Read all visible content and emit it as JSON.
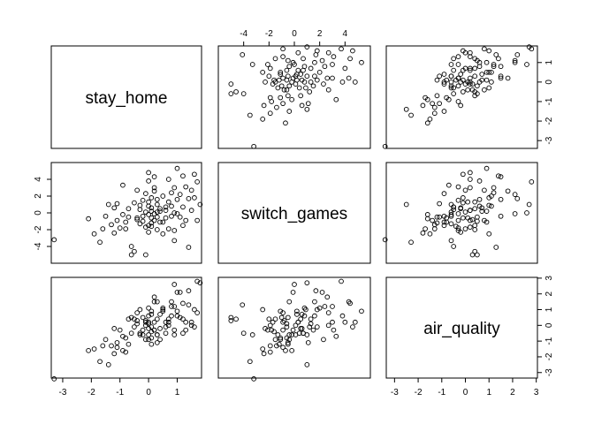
{
  "chart_data": {
    "type": "scatter-matrix",
    "variables": [
      "stay_home",
      "switch_games",
      "air_quality"
    ],
    "ticks": {
      "stay_home": [
        -3,
        -2,
        -1,
        0,
        1
      ],
      "switch_games": [
        -4,
        -2,
        0,
        2,
        4
      ],
      "air_quality": [
        -3,
        -2,
        -1,
        0,
        1,
        2,
        3
      ]
    },
    "ranges": {
      "stay_home": [
        -3.4,
        1.85
      ],
      "switch_games": [
        -6.0,
        6.0
      ],
      "air_quality": [
        -3.35,
        3.05
      ]
    },
    "tick_placement": {
      "top": [
        "switch_games"
      ],
      "right": [
        "stay_home",
        "air_quality"
      ],
      "bottom": [
        "stay_home",
        "air_quality"
      ],
      "left": [
        "switch_games"
      ]
    },
    "grid": false,
    "legend": "none",
    "observations": [
      [
        -3.3,
        -3.2,
        -3.4
      ],
      [
        -2.1,
        -0.7,
        -1.6
      ],
      [
        -1.9,
        -2.5,
        -1.5
      ],
      [
        -1.7,
        -3.5,
        -2.3
      ],
      [
        -1.6,
        -1.9,
        -1.3
      ],
      [
        -1.5,
        -0.4,
        -0.9
      ],
      [
        -1.4,
        1.0,
        -2.5
      ],
      [
        -1.3,
        -1.4,
        -1.3
      ],
      [
        -1.2,
        0.6,
        -0.2
      ],
      [
        -1.2,
        -2.4,
        -1.8
      ],
      [
        -1.1,
        1.1,
        -1.1
      ],
      [
        -1.1,
        -0.9,
        -1.4
      ],
      [
        -1.0,
        -1.8,
        -0.3
      ],
      [
        -0.9,
        -0.2,
        -1.6
      ],
      [
        -0.9,
        3.3,
        -0.7
      ],
      [
        -0.8,
        -1.1,
        -0.8
      ],
      [
        -0.8,
        -1.9,
        -1.7
      ],
      [
        -0.7,
        -0.5,
        -1.2
      ],
      [
        -0.7,
        0.5,
        0.4
      ],
      [
        -0.6,
        -4.0,
        -0.5
      ],
      [
        -0.6,
        -5.0,
        0.5
      ],
      [
        -0.5,
        -4.6,
        0.4
      ],
      [
        -0.5,
        1.2,
        -0.1
      ],
      [
        -0.4,
        2.7,
        0.8
      ],
      [
        -0.4,
        -0.6,
        0.1
      ],
      [
        -0.3,
        0.4,
        -0.5
      ],
      [
        -0.3,
        -1.3,
        -0.6
      ],
      [
        -0.3,
        0.9,
        1.0
      ],
      [
        -0.2,
        -1.0,
        0.5
      ],
      [
        -0.2,
        1.5,
        -0.3
      ],
      [
        -0.2,
        -0.4,
        -0.6
      ],
      [
        -0.1,
        -5.0,
        0.3
      ],
      [
        -0.1,
        0.1,
        0.0
      ],
      [
        -0.1,
        2.3,
        -0.9
      ],
      [
        -0.1,
        -1.7,
        0.2
      ],
      [
        0.0,
        3.8,
        0.6
      ],
      [
        0.0,
        1.3,
        0.1
      ],
      [
        0.0,
        -1.5,
        -0.9
      ],
      [
        0.0,
        -0.2,
        -0.6
      ],
      [
        0.0,
        0.8,
        1.1
      ],
      [
        0.0,
        -2.3,
        -0.2
      ],
      [
        0.0,
        4.8,
        0.2
      ],
      [
        0.1,
        -0.6,
        -0.8
      ],
      [
        0.1,
        0.6,
        0.7
      ],
      [
        0.1,
        -1.2,
        -1.2
      ],
      [
        0.1,
        -1.6,
        -0.4
      ],
      [
        0.1,
        1.8,
        -0.1
      ],
      [
        0.1,
        0.2,
        0.9
      ],
      [
        0.2,
        3.0,
        0.2
      ],
      [
        0.2,
        -0.1,
        -0.3
      ],
      [
        0.2,
        -0.9,
        -0.3
      ],
      [
        0.2,
        4.3,
        1.5
      ],
      [
        0.2,
        2.6,
        1.8
      ],
      [
        0.3,
        -2.0,
        0.4
      ],
      [
        0.3,
        1.0,
        -0.6
      ],
      [
        0.3,
        1.6,
        1.5
      ],
      [
        0.3,
        -0.5,
        -1.1
      ],
      [
        0.3,
        0.1,
        -0.6
      ],
      [
        0.4,
        0.2,
        0.7
      ],
      [
        0.4,
        0.5,
        -0.2
      ],
      [
        0.4,
        -1.1,
        -0.9
      ],
      [
        0.5,
        2.0,
        1.1
      ],
      [
        0.5,
        -2.5,
        1.0
      ],
      [
        0.5,
        -1.1,
        0.9
      ],
      [
        0.6,
        0.3,
        0.2
      ],
      [
        0.6,
        -0.6,
        -0.1
      ],
      [
        0.6,
        0.7,
        -0.5
      ],
      [
        0.7,
        -1.9,
        0.0
      ],
      [
        0.7,
        1.3,
        0.4
      ],
      [
        0.7,
        4.0,
        0.2
      ],
      [
        0.8,
        0.8,
        0.6
      ],
      [
        0.8,
        -0.4,
        1.5
      ],
      [
        0.8,
        2.4,
        1.2
      ],
      [
        0.9,
        -2.1,
        -0.3
      ],
      [
        0.9,
        -3.3,
        -0.6
      ],
      [
        0.9,
        0.0,
        2.6
      ],
      [
        0.9,
        3.0,
        1.2
      ],
      [
        1.0,
        -0.1,
        2.1
      ],
      [
        1.0,
        5.3,
        0.9
      ],
      [
        1.0,
        1.6,
        0.6
      ],
      [
        1.1,
        -0.5,
        0.5
      ],
      [
        1.1,
        2.2,
        2.1
      ],
      [
        1.2,
        -1.5,
        0.4
      ],
      [
        1.2,
        4.4,
        1.4
      ],
      [
        1.2,
        0.7,
        -0.5
      ],
      [
        1.3,
        3.1,
        -0.3
      ],
      [
        1.3,
        -0.9,
        0.2
      ],
      [
        1.4,
        1.7,
        2.2
      ],
      [
        1.4,
        -4.1,
        1.3
      ],
      [
        1.5,
        0.3,
        0.2
      ],
      [
        1.5,
        2.7,
        0.0
      ],
      [
        1.6,
        1.8,
        1.0
      ],
      [
        1.7,
        -0.9,
        0.8
      ],
      [
        1.7,
        3.7,
        2.8
      ],
      [
        1.8,
        1.0,
        2.7
      ],
      [
        1.6,
        4.6,
        -0.1
      ],
      [
        -0.4,
        -0.8,
        0.3
      ]
    ]
  }
}
